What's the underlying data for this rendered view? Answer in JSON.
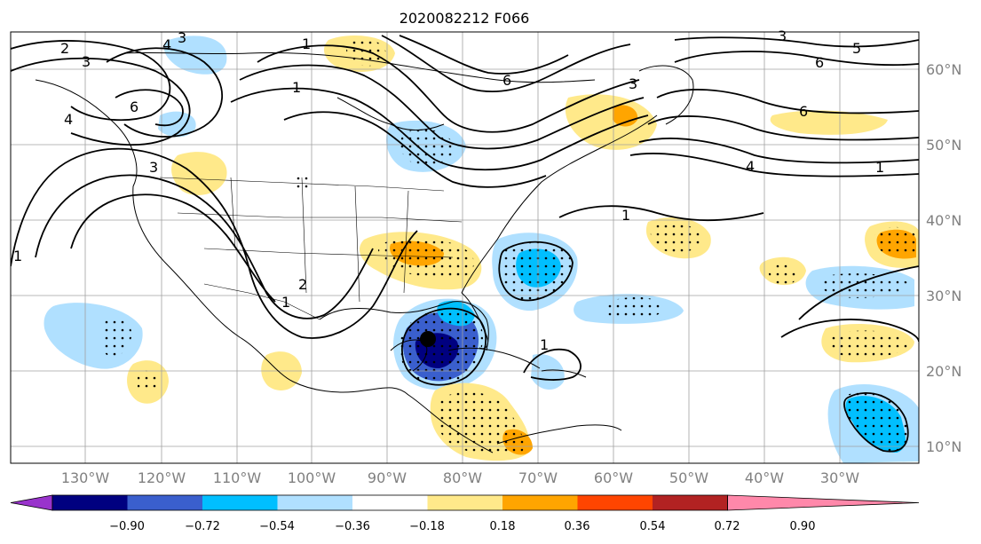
{
  "title": "2020082212 F066",
  "lon_labels": [
    "130°W",
    "120°W",
    "110°W",
    "100°W",
    "90°W",
    "80°W",
    "70°W",
    "60°W",
    "50°W",
    "40°W",
    "30°W"
  ],
  "lat_labels": [
    "60°N",
    "50°N",
    "40°N",
    "30°N",
    "20°N",
    "10°N"
  ],
  "colorbar": {
    "colors": [
      "#9933cc",
      "#000080",
      "#3a5fcd",
      "#00bfff",
      "#b0e0ff",
      "#ffffff",
      "#ffe98a",
      "#ffa500",
      "#ff4500",
      "#b22222",
      "#ff88aa"
    ],
    "labels": [
      "−0.90",
      "−0.72",
      "−0.54",
      "−0.36",
      "−0.18",
      "0.18",
      "0.36",
      "0.54",
      "0.72",
      "0.90"
    ]
  },
  "contour_labels": [
    {
      "text": "2"
    },
    {
      "text": "3"
    },
    {
      "text": "4"
    },
    {
      "text": "3"
    },
    {
      "text": "1"
    },
    {
      "text": "6"
    },
    {
      "text": "3"
    },
    {
      "text": "1"
    },
    {
      "text": "1"
    },
    {
      "text": "1"
    },
    {
      "text": "2"
    },
    {
      "text": "6"
    },
    {
      "text": "3"
    },
    {
      "text": "6"
    },
    {
      "text": "5"
    },
    {
      "text": "3"
    },
    {
      "text": "6"
    },
    {
      "text": "4"
    },
    {
      "text": "1"
    },
    {
      "text": "1"
    },
    {
      "text": "1"
    },
    {
      "text": "4"
    }
  ]
}
